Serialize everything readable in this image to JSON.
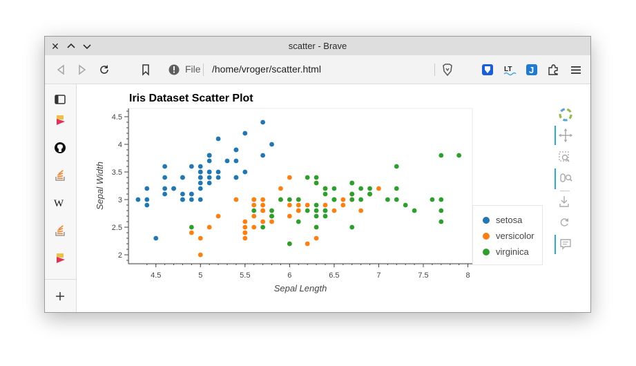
{
  "window": {
    "title": "scatter - Brave"
  },
  "navbar": {
    "file_label": "File",
    "url": "/home/vroger/scatter.html"
  },
  "chart_data": {
    "type": "scatter",
    "title": "Iris Dataset Scatter Plot",
    "xlabel": "Sepal Length",
    "ylabel": "Sepal Width",
    "xlim": [
      4.2,
      8.05
    ],
    "ylim": [
      1.85,
      4.65
    ],
    "x_ticks": [
      4.5,
      5,
      5.5,
      6,
      6.5,
      7,
      7.5,
      8
    ],
    "y_ticks": [
      2,
      2.5,
      3,
      3.5,
      4,
      4.5
    ],
    "x_tick_labels": [
      "4.5",
      "5",
      "5.5",
      "6",
      "6.5",
      "7",
      "7.5",
      "8"
    ],
    "y_tick_labels": [
      "2",
      "2.5",
      "3",
      "3.5",
      "4",
      "4.5"
    ],
    "legend_position": "right",
    "series": [
      {
        "name": "setosa",
        "color": "#1f77b4",
        "points": [
          [
            5.1,
            3.5
          ],
          [
            4.9,
            3.0
          ],
          [
            4.7,
            3.2
          ],
          [
            4.6,
            3.1
          ],
          [
            5.0,
            3.6
          ],
          [
            5.4,
            3.9
          ],
          [
            4.6,
            3.4
          ],
          [
            5.0,
            3.4
          ],
          [
            4.4,
            2.9
          ],
          [
            4.9,
            3.1
          ],
          [
            5.4,
            3.7
          ],
          [
            4.8,
            3.4
          ],
          [
            4.8,
            3.0
          ],
          [
            4.3,
            3.0
          ],
          [
            5.8,
            4.0
          ],
          [
            5.7,
            4.4
          ],
          [
            5.4,
            3.9
          ],
          [
            5.1,
            3.5
          ],
          [
            5.7,
            3.8
          ],
          [
            5.1,
            3.8
          ],
          [
            5.4,
            3.4
          ],
          [
            5.1,
            3.7
          ],
          [
            4.6,
            3.6
          ],
          [
            5.1,
            3.3
          ],
          [
            4.8,
            3.4
          ],
          [
            5.0,
            3.0
          ],
          [
            5.0,
            3.4
          ],
          [
            5.2,
            3.5
          ],
          [
            5.2,
            3.4
          ],
          [
            4.7,
            3.2
          ],
          [
            4.8,
            3.1
          ],
          [
            5.4,
            3.4
          ],
          [
            5.2,
            4.1
          ],
          [
            5.5,
            4.2
          ],
          [
            4.9,
            3.1
          ],
          [
            5.0,
            3.2
          ],
          [
            5.5,
            3.5
          ],
          [
            4.9,
            3.6
          ],
          [
            4.4,
            3.0
          ],
          [
            5.1,
            3.4
          ],
          [
            5.0,
            3.5
          ],
          [
            4.5,
            2.3
          ],
          [
            4.4,
            3.2
          ],
          [
            5.0,
            3.5
          ],
          [
            5.1,
            3.8
          ],
          [
            4.8,
            3.0
          ],
          [
            5.1,
            3.8
          ],
          [
            4.6,
            3.2
          ],
          [
            5.3,
            3.7
          ],
          [
            5.0,
            3.3
          ]
        ]
      },
      {
        "name": "versicolor",
        "color": "#ff7f0e",
        "points": [
          [
            7.0,
            3.2
          ],
          [
            6.4,
            3.2
          ],
          [
            6.9,
            3.1
          ],
          [
            5.5,
            2.3
          ],
          [
            6.5,
            2.8
          ],
          [
            5.7,
            2.8
          ],
          [
            6.3,
            3.3
          ],
          [
            4.9,
            2.4
          ],
          [
            6.6,
            2.9
          ],
          [
            5.2,
            2.7
          ],
          [
            5.0,
            2.0
          ],
          [
            5.9,
            3.0
          ],
          [
            6.0,
            2.2
          ],
          [
            6.1,
            2.9
          ],
          [
            5.6,
            2.9
          ],
          [
            6.7,
            3.1
          ],
          [
            5.6,
            3.0
          ],
          [
            5.8,
            2.7
          ],
          [
            6.2,
            2.2
          ],
          [
            5.6,
            2.5
          ],
          [
            5.9,
            3.2
          ],
          [
            6.1,
            2.8
          ],
          [
            6.3,
            2.5
          ],
          [
            6.1,
            2.8
          ],
          [
            6.4,
            2.9
          ],
          [
            6.6,
            3.0
          ],
          [
            6.8,
            2.8
          ],
          [
            6.7,
            3.0
          ],
          [
            6.0,
            2.9
          ],
          [
            5.7,
            2.6
          ],
          [
            5.5,
            2.4
          ],
          [
            5.5,
            2.4
          ],
          [
            5.8,
            2.7
          ],
          [
            6.0,
            2.7
          ],
          [
            5.4,
            3.0
          ],
          [
            6.0,
            3.4
          ],
          [
            6.7,
            3.1
          ],
          [
            6.3,
            2.3
          ],
          [
            5.6,
            3.0
          ],
          [
            5.5,
            2.5
          ],
          [
            5.5,
            2.6
          ],
          [
            6.1,
            3.0
          ],
          [
            5.8,
            2.6
          ],
          [
            5.0,
            2.3
          ],
          [
            5.6,
            2.7
          ],
          [
            5.7,
            3.0
          ],
          [
            5.7,
            2.9
          ],
          [
            6.2,
            2.9
          ],
          [
            5.1,
            2.5
          ],
          [
            5.7,
            2.8
          ]
        ]
      },
      {
        "name": "virginica",
        "color": "#2ca02c",
        "points": [
          [
            6.3,
            3.3
          ],
          [
            5.8,
            2.7
          ],
          [
            7.1,
            3.0
          ],
          [
            6.3,
            2.9
          ],
          [
            6.5,
            3.0
          ],
          [
            7.6,
            3.0
          ],
          [
            4.9,
            2.5
          ],
          [
            7.3,
            2.9
          ],
          [
            6.7,
            2.5
          ],
          [
            7.2,
            3.6
          ],
          [
            6.5,
            3.2
          ],
          [
            6.4,
            2.7
          ],
          [
            6.8,
            3.0
          ],
          [
            5.7,
            2.5
          ],
          [
            5.8,
            2.8
          ],
          [
            6.4,
            3.2
          ],
          [
            6.5,
            3.0
          ],
          [
            7.7,
            3.8
          ],
          [
            7.7,
            2.6
          ],
          [
            6.0,
            2.2
          ],
          [
            6.9,
            3.2
          ],
          [
            5.6,
            2.8
          ],
          [
            7.7,
            2.8
          ],
          [
            6.3,
            2.7
          ],
          [
            6.7,
            3.3
          ],
          [
            7.2,
            3.2
          ],
          [
            6.2,
            2.8
          ],
          [
            6.1,
            3.0
          ],
          [
            6.4,
            2.8
          ],
          [
            7.2,
            3.0
          ],
          [
            7.4,
            2.8
          ],
          [
            7.9,
            3.8
          ],
          [
            6.4,
            2.8
          ],
          [
            6.3,
            2.8
          ],
          [
            6.1,
            2.6
          ],
          [
            7.7,
            3.0
          ],
          [
            6.3,
            3.4
          ],
          [
            6.4,
            3.1
          ],
          [
            6.0,
            3.0
          ],
          [
            6.9,
            3.1
          ],
          [
            6.7,
            3.1
          ],
          [
            6.9,
            3.1
          ],
          [
            5.8,
            2.7
          ],
          [
            6.8,
            3.2
          ],
          [
            6.7,
            3.3
          ],
          [
            6.7,
            3.0
          ],
          [
            6.3,
            2.5
          ],
          [
            6.5,
            3.0
          ],
          [
            6.2,
            3.4
          ],
          [
            5.9,
            3.0
          ]
        ]
      }
    ]
  }
}
